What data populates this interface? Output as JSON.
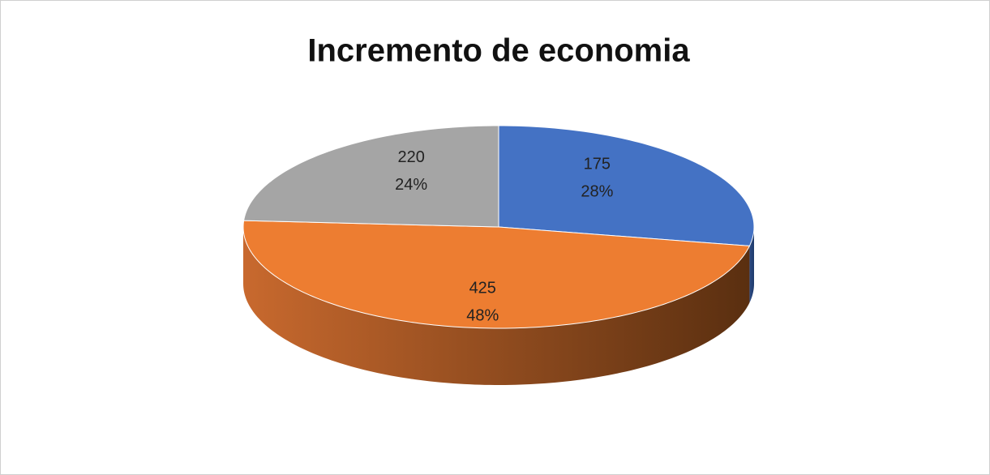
{
  "chart_data": {
    "type": "pie3d",
    "title": "Incremento de economia",
    "values": [
      28,
      48,
      24
    ],
    "value_labels": [
      "28%",
      "48%",
      "24%"
    ],
    "amounts": [
      175,
      425,
      220
    ],
    "colors": [
      "#4472c4",
      "#ed7d31",
      "#a5a5a5"
    ]
  }
}
